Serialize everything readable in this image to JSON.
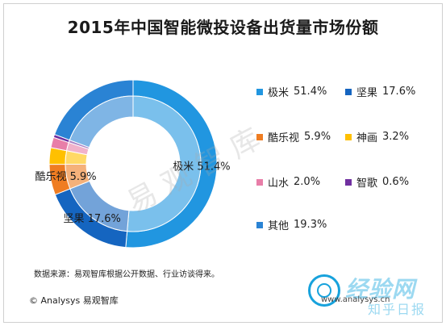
{
  "title": "2015年中国智能微投设备出货量市场份额",
  "chart_data": {
    "type": "pie",
    "title": "2015年中国智能微投设备出货量市场份额",
    "unit": "%",
    "series": [
      {
        "name": "极米",
        "value": 51.4,
        "label": "51.4%",
        "color": "#2196e0"
      },
      {
        "name": "坚果",
        "value": 17.6,
        "label": "17.6%",
        "color": "#1565c0"
      },
      {
        "name": "酷乐视",
        "value": 5.9,
        "label": "5.9%",
        "color": "#ef7d22"
      },
      {
        "name": "神画",
        "value": 3.2,
        "label": "3.2%",
        "color": "#ffc000"
      },
      {
        "name": "山水",
        "value": 2.0,
        "label": "2.0%",
        "color": "#e87ea8"
      },
      {
        "name": "智歌",
        "value": 0.6,
        "label": "0.6%",
        "color": "#7030a0"
      },
      {
        "name": "其他",
        "value": 19.3,
        "label": "19.3%",
        "color": "#2a83d4"
      }
    ],
    "slice_labels": [
      {
        "name": "极米",
        "label": "51.4%"
      },
      {
        "name": "坚果",
        "label": "17.6%"
      },
      {
        "name": "酷乐视",
        "label": "5.9%"
      }
    ],
    "legend_position": "right"
  },
  "footer": {
    "source": "数据来源：易观智库根据公开数据、行业访谈得来。",
    "brand": "© Analysys 易观智库",
    "website": "www.analysys.cn"
  },
  "watermark": "易观智库",
  "badge": {
    "text": "经验网",
    "sub": "知乎日报"
  }
}
